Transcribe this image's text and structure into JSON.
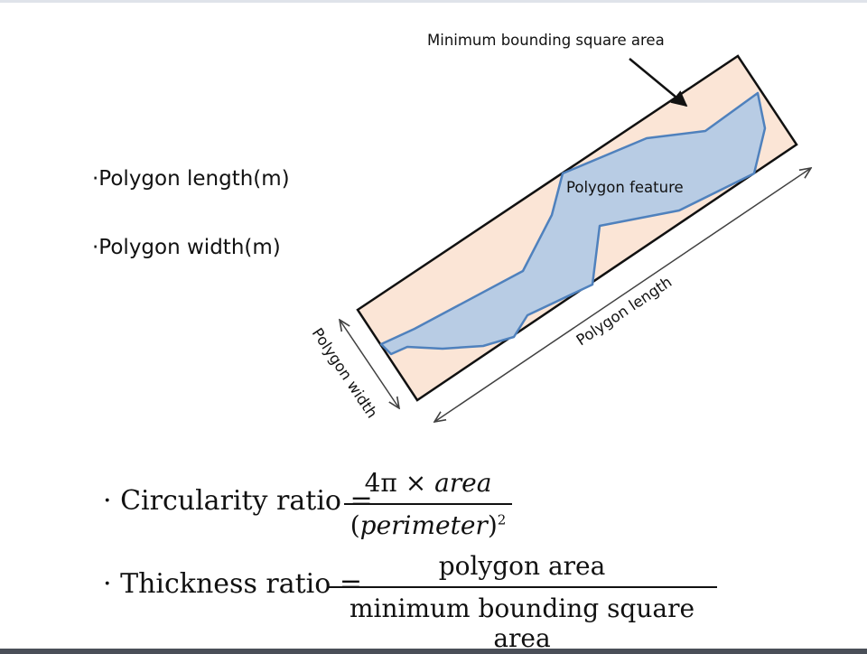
{
  "bullets": [
    "·Polygon length(m)",
    "·Polygon width(m)"
  ],
  "diagram": {
    "bounding_box_label": "Minimum bounding square area",
    "polygon_label": "Polygon feature",
    "length_label": "Polygon length",
    "width_label": "Polygon width",
    "colors": {
      "bounding_fill": "#fbe5d6",
      "polygon_fill": "#b8cce4",
      "polygon_stroke": "#4f81bd",
      "dimension_line": "#404040"
    }
  },
  "formulas": {
    "circularity": {
      "label": "· Circularity ratio =",
      "numerator_prefix": "4π × ",
      "numerator_var": "area",
      "denominator_open": "(",
      "denominator_var": "perimeter",
      "denominator_close": ")",
      "exponent": "2"
    },
    "thickness": {
      "label": "· Thickness ratio =",
      "numerator": "polygon area",
      "denominator": "minimum bounding square area"
    }
  }
}
